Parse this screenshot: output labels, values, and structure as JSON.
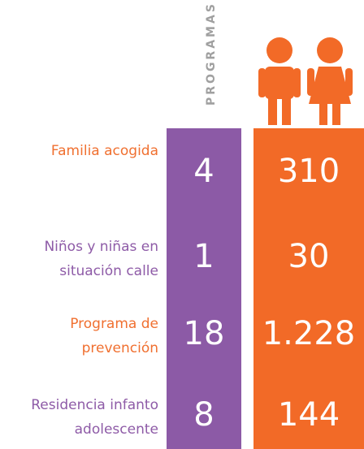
{
  "column_header": "PROGRAMAS",
  "rows": [
    {
      "label": [
        "Familia acogida"
      ],
      "programas": "4",
      "ninos": "310"
    },
    {
      "label": [
        "Niños y niñas en",
        "situación calle"
      ],
      "programas": "1",
      "ninos": "30"
    },
    {
      "label": [
        "Programa de",
        "prevención"
      ],
      "programas": "18",
      "ninos": "1.228"
    },
    {
      "label": [
        "Residencia infanto",
        "adolescente"
      ],
      "programas": "8",
      "ninos": "144"
    }
  ]
}
